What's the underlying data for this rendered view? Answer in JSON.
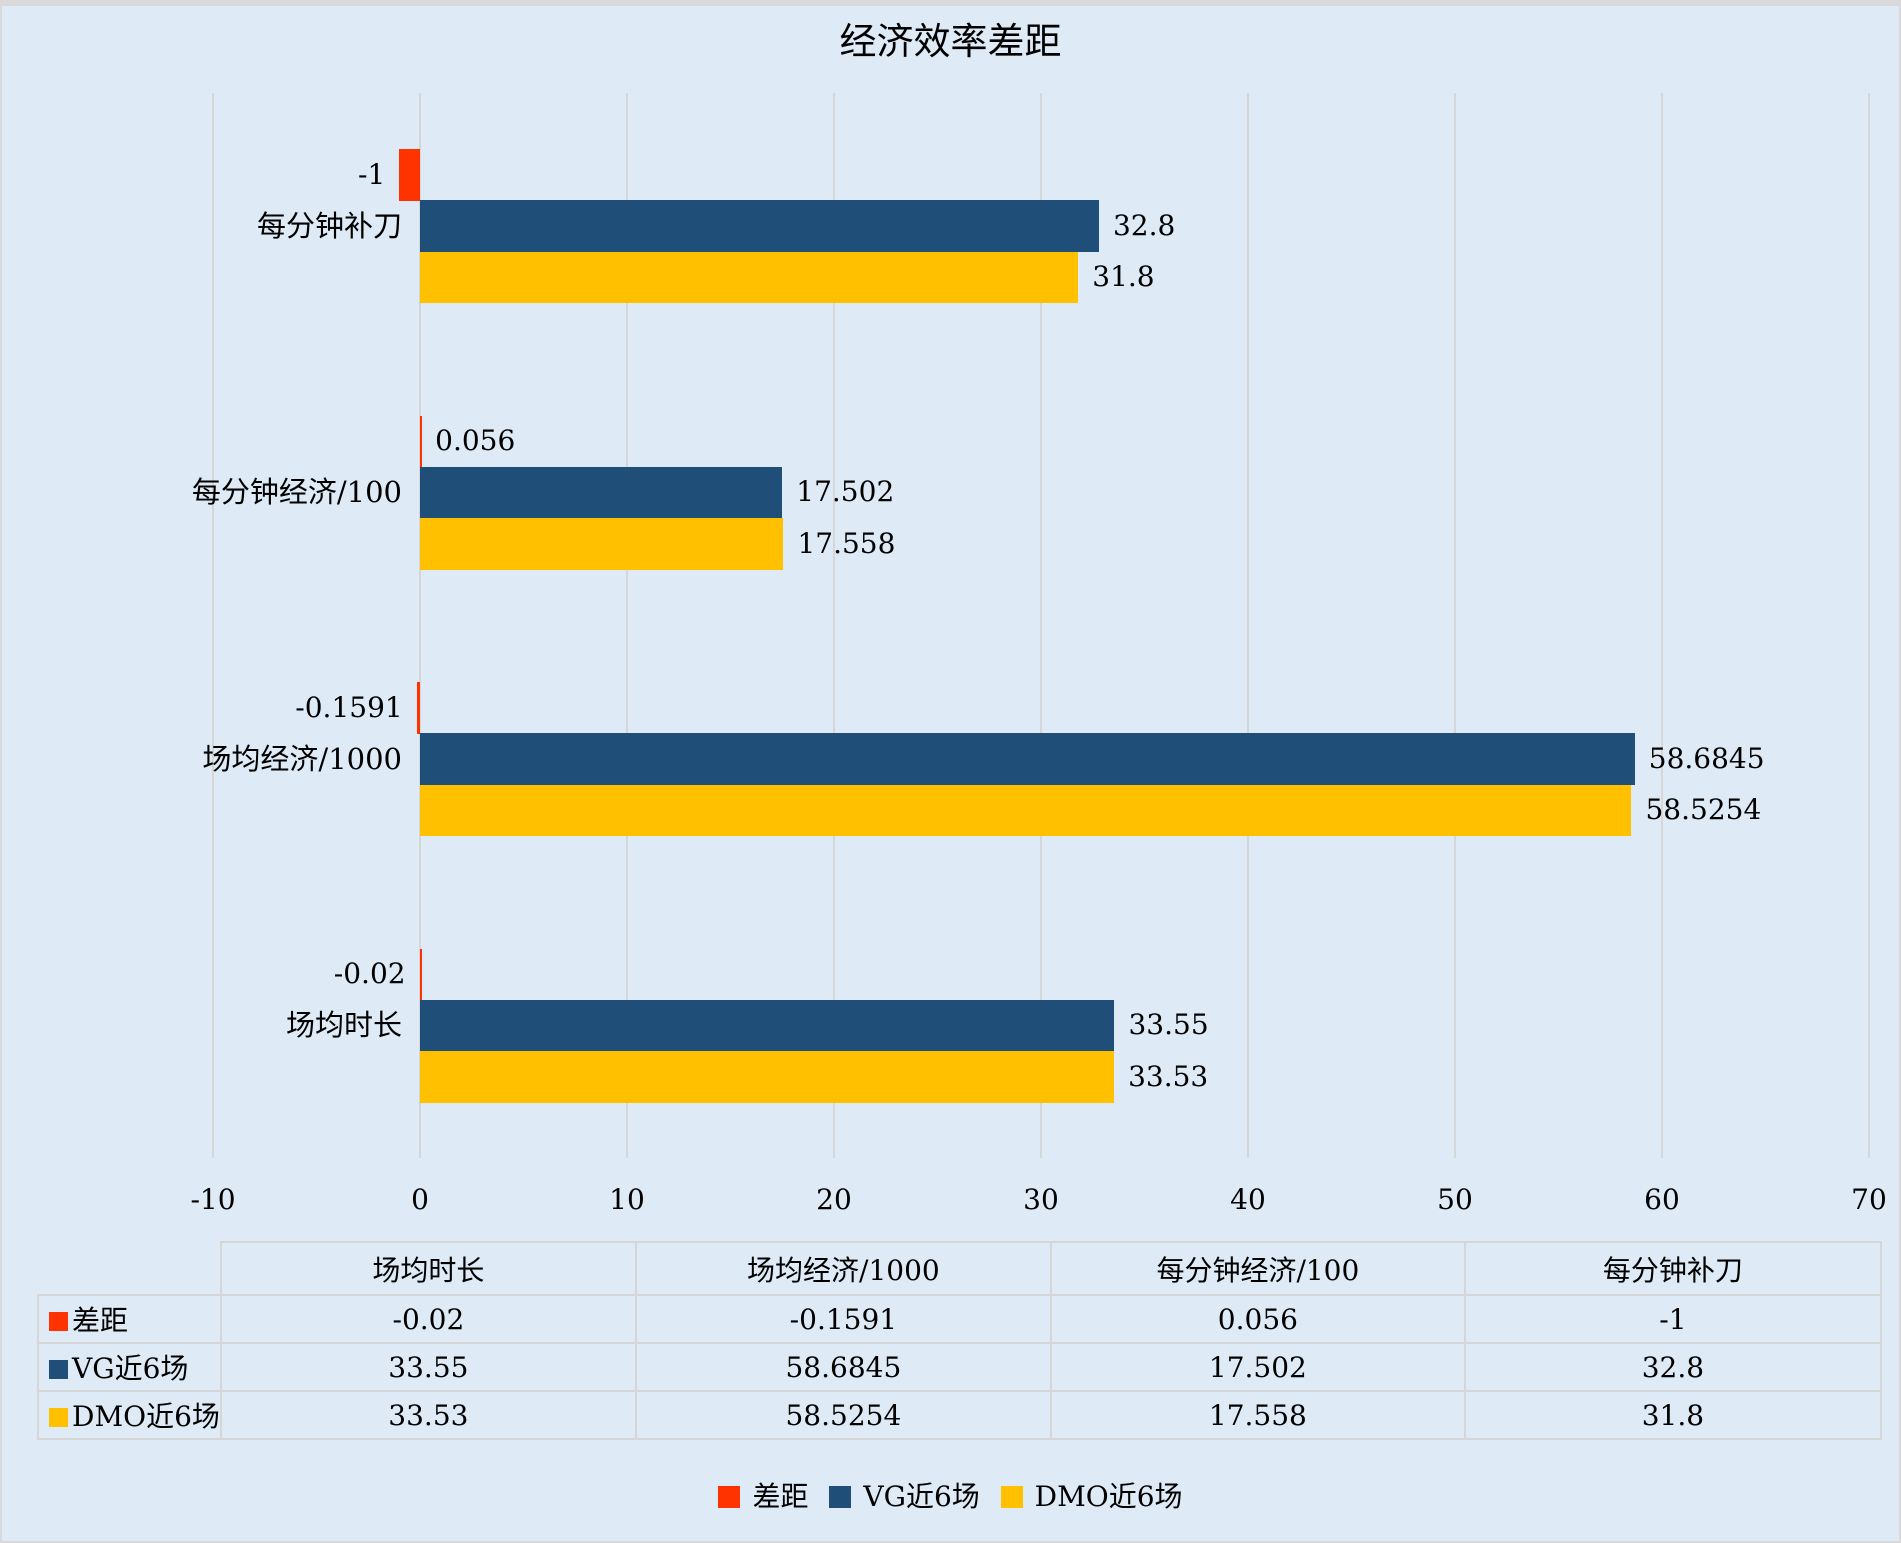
{
  "title": "经济效率差距",
  "colors": {
    "gap": "#ff3300",
    "vg": "#1f4e79",
    "dmo": "#ffc000",
    "background": "#deeaf6",
    "grid": "#d6d6d6"
  },
  "axis": {
    "ticks": [
      "-10",
      "0",
      "10",
      "20",
      "30",
      "40",
      "50",
      "60",
      "70"
    ]
  },
  "categories_top_to_bottom": [
    "每分钟补刀",
    "每分钟经济/100",
    "场均经济/1000",
    "场均时长"
  ],
  "bars": [
    {
      "category": "每分钟补刀",
      "gap": "-1",
      "vg": "32.8",
      "dmo": "31.8"
    },
    {
      "category": "每分钟经济/100",
      "gap": "0.056",
      "vg": "17.502",
      "dmo": "17.558"
    },
    {
      "category": "场均经济/1000",
      "gap": "-0.1591",
      "vg": "58.6845",
      "dmo": "58.5254"
    },
    {
      "category": "场均时长",
      "gap": "-0.02",
      "vg": "33.55",
      "dmo": "33.53"
    }
  ],
  "table": {
    "headers": [
      "场均时长",
      "场均经济/1000",
      "每分钟经济/100",
      "每分钟补刀"
    ],
    "rows": [
      {
        "label": "差距",
        "values": [
          "-0.02",
          "-0.1591",
          "0.056",
          "-1"
        ]
      },
      {
        "label": "VG近6场",
        "values": [
          "33.55",
          "58.6845",
          "17.502",
          "32.8"
        ]
      },
      {
        "label": "DMO近6场",
        "values": [
          "33.53",
          "58.5254",
          "17.558",
          "31.8"
        ]
      }
    ]
  },
  "legend": [
    "差距",
    "VG近6场",
    "DMO近6场"
  ],
  "chart_data": {
    "type": "bar",
    "orientation": "horizontal",
    "title": "经济效率差距",
    "categories": [
      "场均时长",
      "场均经济/1000",
      "每分钟经济/100",
      "每分钟补刀"
    ],
    "series": [
      {
        "name": "差距",
        "color": "#ff3300",
        "values": [
          -0.02,
          -0.1591,
          0.056,
          -1
        ]
      },
      {
        "name": "VG近6场",
        "color": "#1f4e79",
        "values": [
          33.55,
          58.6845,
          17.502,
          32.8
        ]
      },
      {
        "name": "DMO近6场",
        "color": "#ffc000",
        "values": [
          33.53,
          58.5254,
          17.558,
          31.8
        ]
      }
    ],
    "xlabel": "",
    "ylabel": "",
    "xlim": [
      -10,
      70
    ],
    "x_ticks": [
      -10,
      0,
      10,
      20,
      30,
      40,
      50,
      60,
      70
    ],
    "grid": true,
    "data_labels": true,
    "data_table": true,
    "legend_position": "bottom"
  }
}
